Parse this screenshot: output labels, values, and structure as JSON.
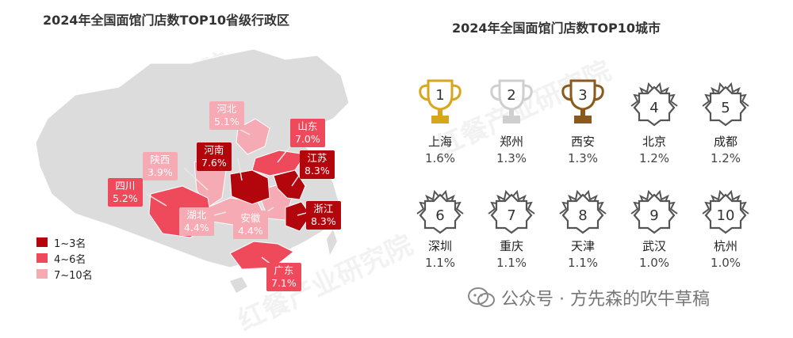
{
  "chart_data": [
    {
      "type": "map",
      "title": "2024年全国面馆门店数TOP10省级行政区",
      "legend": [
        {
          "label": "1~3名",
          "color": "#b2050c"
        },
        {
          "label": "4~6名",
          "color": "#ee4a5b"
        },
        {
          "label": "7~10名",
          "color": "#f6aab3"
        }
      ],
      "regions": [
        {
          "name": "河南",
          "value": "7.6%",
          "tier": "1~3名"
        },
        {
          "name": "江苏",
          "value": "8.3%",
          "tier": "1~3名"
        },
        {
          "name": "浙江",
          "value": "8.3%",
          "tier": "1~3名"
        },
        {
          "name": "山东",
          "value": "7.0%",
          "tier": "4~6名"
        },
        {
          "name": "四川",
          "value": "5.2%",
          "tier": "4~6名"
        },
        {
          "name": "广东",
          "value": "7.1%",
          "tier": "4~6名"
        },
        {
          "name": "河北",
          "value": "5.1%",
          "tier": "7~10名"
        },
        {
          "name": "陕西",
          "value": "3.9%",
          "tier": "7~10名"
        },
        {
          "name": "湖北",
          "value": "4.4%",
          "tier": "7~10名"
        },
        {
          "name": "安徽",
          "value": "4.4%",
          "tier": "7~10名"
        }
      ]
    },
    {
      "type": "table",
      "title": "2024年全国面馆门店数TOP10城市",
      "rows": [
        {
          "rank": "1",
          "city": "上海",
          "value": "1.6%",
          "style": "gold"
        },
        {
          "rank": "2",
          "city": "郑州",
          "value": "1.3%",
          "style": "silver"
        },
        {
          "rank": "3",
          "city": "西安",
          "value": "1.3%",
          "style": "bronze"
        },
        {
          "rank": "4",
          "city": "北京",
          "value": "1.2%",
          "style": "badge"
        },
        {
          "rank": "5",
          "city": "成都",
          "value": "1.2%",
          "style": "badge"
        },
        {
          "rank": "6",
          "city": "深圳",
          "value": "1.1%",
          "style": "badge"
        },
        {
          "rank": "7",
          "city": "重庆",
          "value": "1.1%",
          "style": "badge"
        },
        {
          "rank": "8",
          "city": "天津",
          "value": "1.1%",
          "style": "badge"
        },
        {
          "rank": "9",
          "city": "武汉",
          "value": "1.0%",
          "style": "badge"
        },
        {
          "rank": "10",
          "city": "杭州",
          "value": "1.0%",
          "style": "badge"
        }
      ]
    }
  ],
  "colors": {
    "gold": "#d9a51c",
    "silver": "#cfcfcf",
    "bronze": "#8a5a1c",
    "badge": "#555555"
  },
  "watermark": {
    "text": "公众号 · 方先森的吹牛草稿"
  },
  "faint_watermark": {
    "text": "红餐产业研究院"
  }
}
